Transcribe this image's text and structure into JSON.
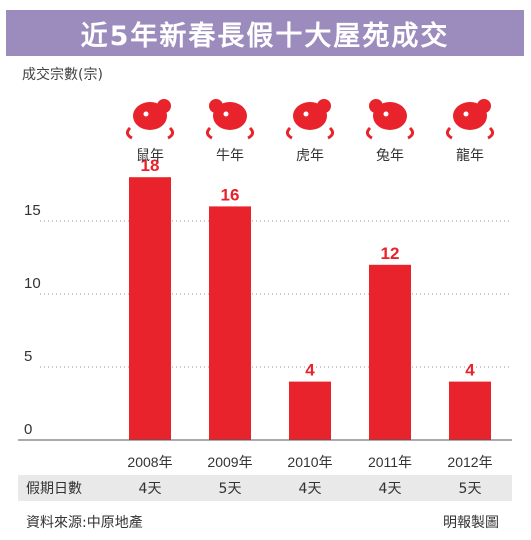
{
  "title": "近5年新春長假十大屋苑成交",
  "ylabel": "成交宗數(宗)",
  "colors": {
    "bar": "#e8232b",
    "value_label": "#e8232b",
    "title_bg": "#9c8bbd",
    "row_bg": "#e9e9e9"
  },
  "chart_data": {
    "type": "bar",
    "categories": [
      "2008年",
      "2009年",
      "2010年",
      "2011年",
      "2012年"
    ],
    "values": [
      18,
      16,
      4,
      12,
      4
    ],
    "zodiac": [
      "鼠年",
      "牛年",
      "虎年",
      "兔年",
      "龍年"
    ],
    "zodiac_icons": [
      "rat-icon",
      "ox-icon",
      "tiger-icon",
      "rabbit-icon",
      "dragon-icon"
    ],
    "yticks": [
      0,
      5,
      10,
      15
    ],
    "ylim": [
      0,
      20
    ],
    "title": "近5年新春長假十大屋苑成交",
    "ylabel": "成交宗數(宗)",
    "xlabel": ""
  },
  "table": {
    "row_label": "假期日數",
    "values": [
      "4天",
      "5天",
      "4天",
      "4天",
      "5天"
    ]
  },
  "footer": {
    "source": "資料來源:中原地產",
    "credit": "明報製圖"
  }
}
